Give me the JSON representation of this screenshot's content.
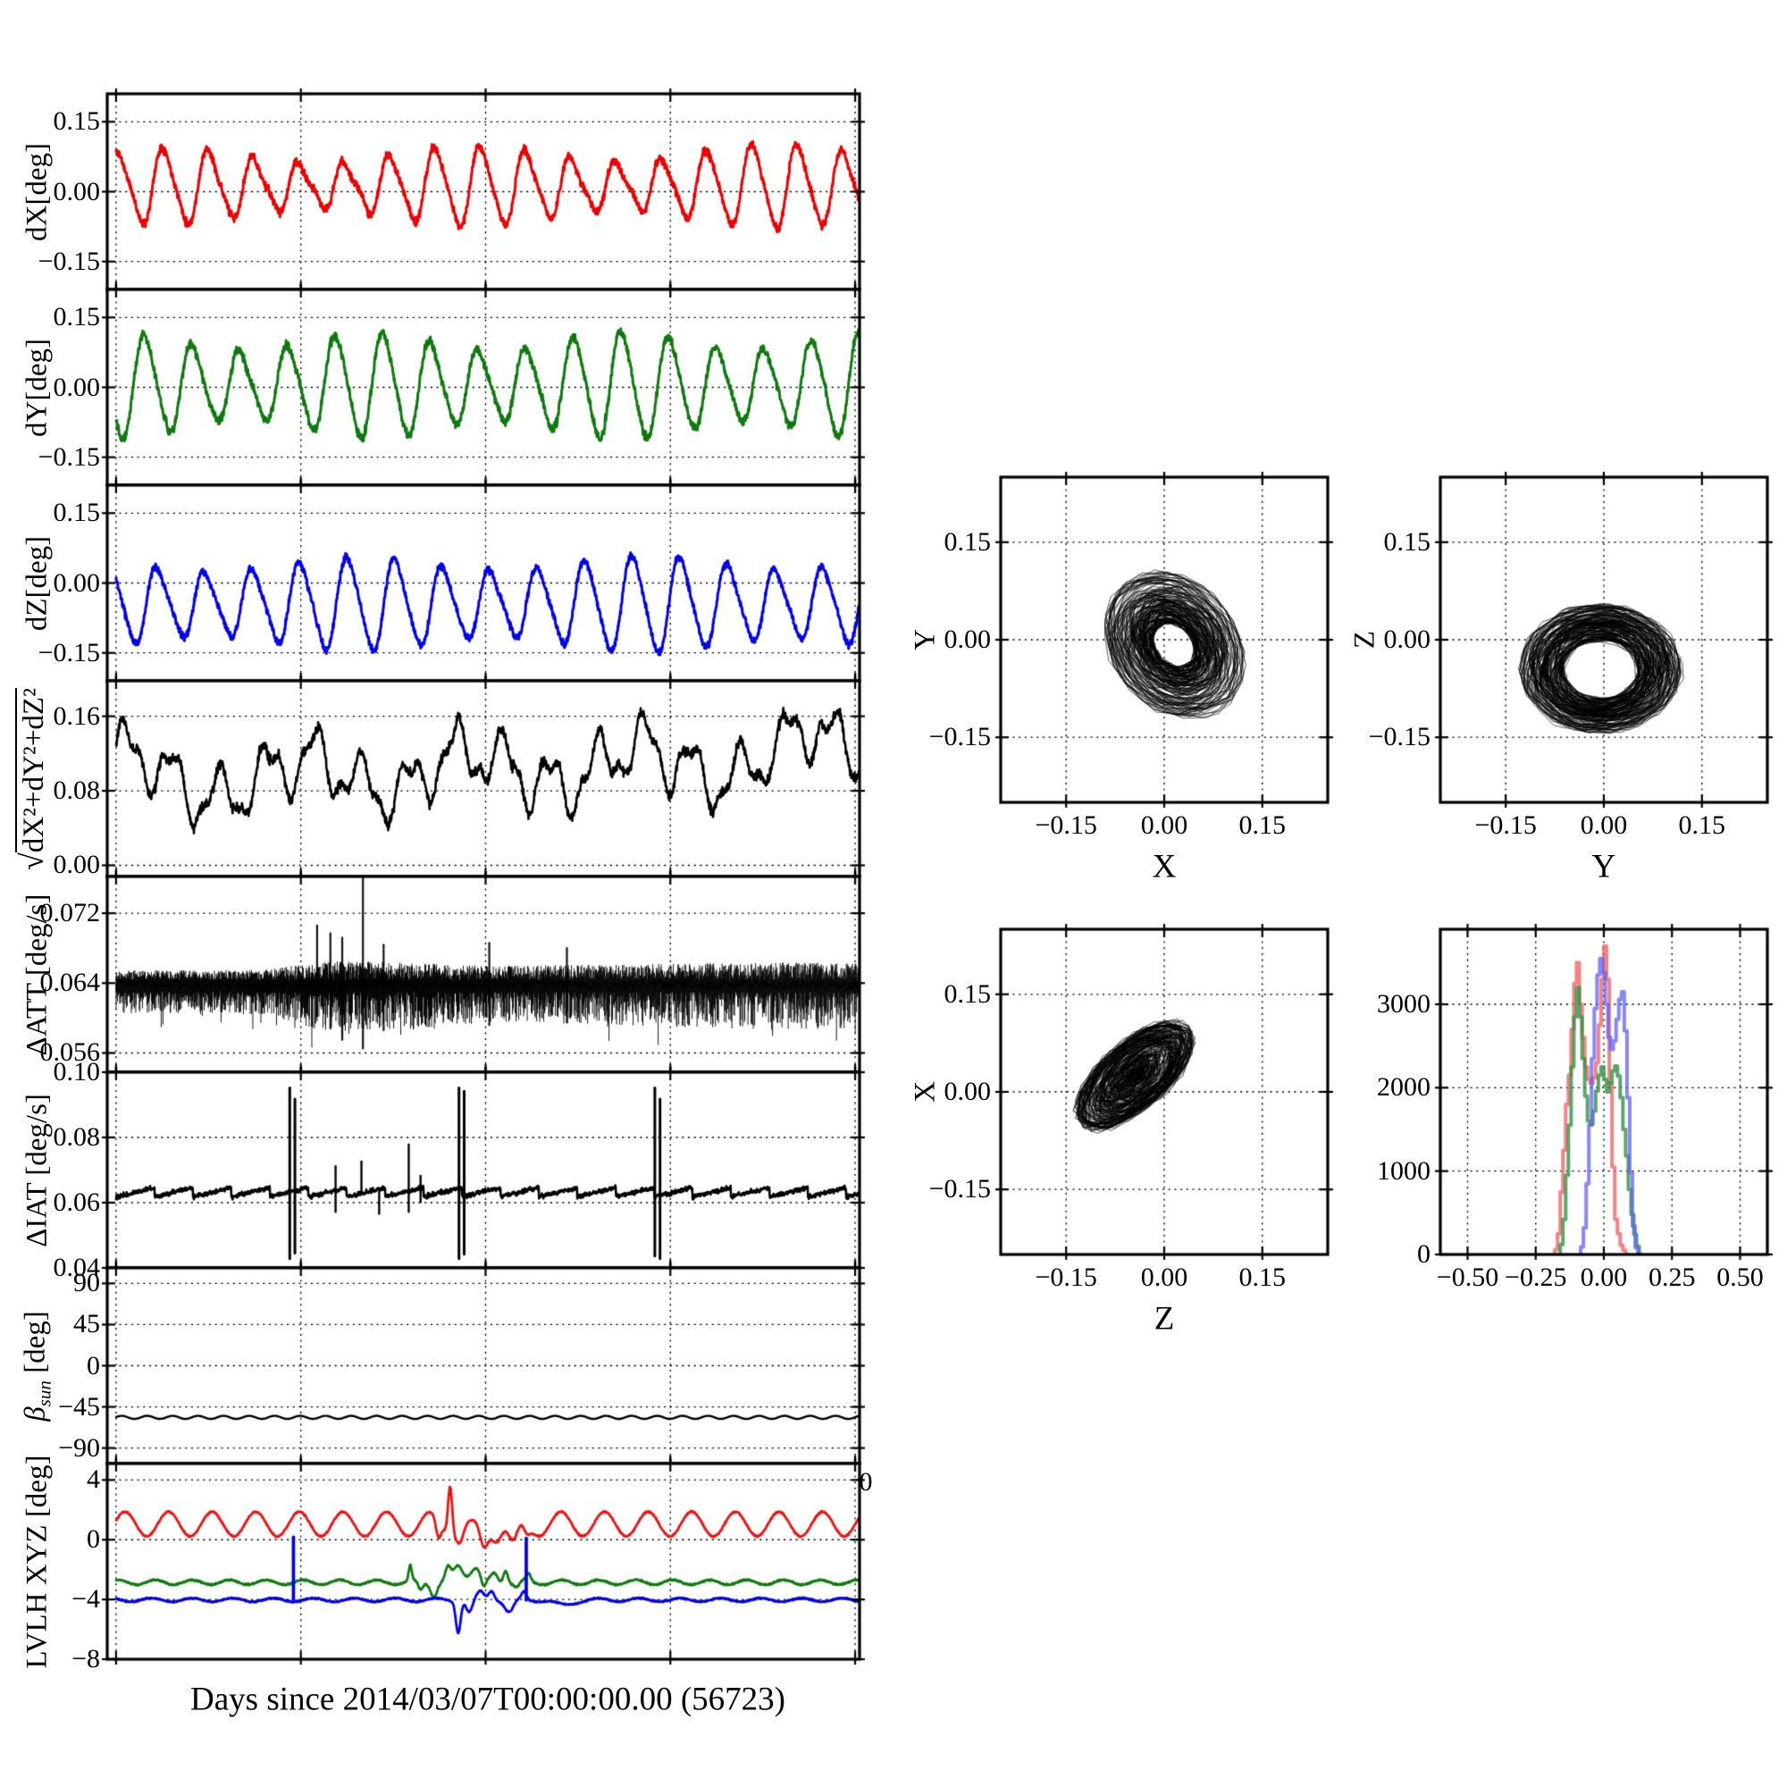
{
  "figure": {
    "xlabel": "Days since 2014/03/07T00:00:00.00 (56723)"
  },
  "chart_data": [
    {
      "id": "dx",
      "type": "line",
      "ylabel": "dX[deg]",
      "xlim": [
        -0.12,
        10.06
      ],
      "xticks": [
        0,
        2.5,
        5,
        7.5,
        10
      ],
      "ylim": [
        -0.21,
        0.21
      ],
      "yticks": [
        0.15,
        0,
        -0.15
      ],
      "yticklabels": [
        "0.15",
        "0.00",
        "−0.15"
      ],
      "series": [
        {
          "name": "dX",
          "color": "#ee0000",
          "lw": 3,
          "gen": "osc",
          "mean": 0.012,
          "amp": 0.06,
          "period": 0.613,
          "phase": 1.2,
          "amp_mod": {
            "a": 0.32,
            "p": 4.1,
            "ph": 0.5
          },
          "lin": 0.18,
          "harm2": 0.013,
          "noise": 0.009,
          "seed": 11
        }
      ],
      "desc": "Red oscillation ~16 cycles over 10 days; mean +0.01 deg, peaks 0.07 to 0.14 deg, troughs -0.02 to -0.09 deg"
    },
    {
      "id": "dy",
      "type": "line",
      "ylabel": "dY[deg]",
      "xlim": [
        -0.12,
        10.06
      ],
      "xticks": [
        0,
        2.5,
        5,
        7.5,
        10
      ],
      "ylim": [
        -0.21,
        0.21
      ],
      "yticks": [
        0.15,
        0,
        -0.15
      ],
      "yticklabels": [
        "0.15",
        "0.00",
        "−0.15"
      ],
      "series": [
        {
          "name": "dY",
          "color": "#0e7a0e",
          "lw": 3,
          "gen": "osc",
          "mean": 0.004,
          "amp": 0.09,
          "period": 0.645,
          "phase": 4.0,
          "amp_mod": {
            "a": 0.22,
            "p": 3.4,
            "ph": 1.5
          },
          "lin": 0.05,
          "harm2": 0.012,
          "noise": 0.01,
          "seed": 22
        }
      ],
      "desc": "Green oscillation ~15 cycles; mean 0, peaks to +0.13 deg, troughs to -0.13 deg"
    },
    {
      "id": "dz",
      "type": "line",
      "ylabel": "dZ[deg]",
      "xlim": [
        -0.12,
        10.06
      ],
      "xticks": [
        0,
        2.5,
        5,
        7.5,
        10
      ],
      "ylim": [
        -0.21,
        0.21
      ],
      "yticks": [
        0.15,
        0,
        -0.15
      ],
      "yticklabels": [
        "0.15",
        "0.00",
        "−0.15"
      ],
      "series": [
        {
          "name": "dZ",
          "color": "#0000ee",
          "lw": 3,
          "gen": "osc",
          "mean": -0.045,
          "amp": 0.08,
          "period": 0.643,
          "phase": 2.3,
          "amp_mod": {
            "a": 0.2,
            "p": 3.9,
            "ph": 2.6
          },
          "lin": 0.1,
          "harm2": 0.013,
          "noise": 0.008,
          "seed": 33
        }
      ],
      "desc": "Blue oscillation ~15 cycles; mean -0.045 deg, peaks ~+0.06, troughs ~-0.15 deg"
    },
    {
      "id": "mag",
      "type": "line",
      "ylabel_parts": {
        "sqrt": "√",
        "radicand": "dX²+dY²+dZ²"
      },
      "xlim": [
        -0.12,
        10.06
      ],
      "xticks": [
        0,
        2.5,
        5,
        7.5,
        10
      ],
      "ylim": [
        -0.012,
        0.198
      ],
      "yticks": [
        0.16,
        0.08,
        0
      ],
      "yticklabels": [
        "0.16",
        "0.08",
        "0.00"
      ],
      "series": [
        {
          "name": "magnitude",
          "color": "#000000",
          "lw": 2.6,
          "gen": "mag",
          "mean": 0.1,
          "comps": [
            {
              "a": 0.028,
              "p": 0.64,
              "ph": 0.4
            },
            {
              "a": 0.02,
              "p": 2.3,
              "ph": 1.1
            },
            {
              "a": 0.011,
              "p": 0.27,
              "ph": 0
            }
          ],
          "walk": 0.0015,
          "revert": 0.994,
          "noise": 0.0055,
          "trend": {
            "t0": 5,
            "dy": 0.013
          },
          "seed": 44
        }
      ],
      "desc": "Black total pointing error magnitude; fluctuates 0.03-0.18 deg, mean ~0.10 deg, slightly larger after day 5"
    },
    {
      "id": "datt",
      "type": "line",
      "ylabel": "ΔATT [deg/s]",
      "xlim": [
        -0.12,
        10.06
      ],
      "xticks": [
        0,
        2.5,
        5,
        7.5,
        10
      ],
      "ylim": [
        0.0538,
        0.0762
      ],
      "yticks": [
        0.072,
        0.064,
        0.056
      ],
      "yticklabels": [
        "0.072",
        "0.064",
        "0.056"
      ],
      "series": [
        {
          "name": "dATT rate",
          "color": "#000000",
          "lw": 1,
          "gen": "band",
          "base": 0.0638,
          "up": 0.0015,
          "down": 0.0032,
          "env": [
            0.75,
            0.75,
            0.8,
            1.55,
            1.3,
            1.1,
            1.15,
            1.2,
            1.3,
            1.35,
            1.3
          ],
          "spikes": [
            [
              3.34,
              0.0762,
              0.0565
            ],
            [
              2.72,
              0.0706,
              0.0602
            ],
            [
              2.9,
              0.0697,
              0.0588
            ],
            [
              3.06,
              0.0692,
              0.0575
            ],
            [
              3.62,
              0.0684,
              0.0586
            ],
            [
              5.05,
              0.0686,
              0.0592
            ],
            [
              6.1,
              0.068,
              0.0595
            ]
          ],
          "seed": 55
        }
      ],
      "desc": "Black rate-noise band centred at 0.064 deg/s, width ~±0.003; noisy burst near day 3 reaching 0.076 and 0.057"
    },
    {
      "id": "diat",
      "type": "line",
      "ylabel": "ΔIAT [deg/s]",
      "xlim": [
        -0.12,
        10.06
      ],
      "xticks": [
        0,
        2.5,
        5,
        7.5,
        10
      ],
      "ylim": [
        0.04,
        0.1
      ],
      "yticks": [
        0.1,
        0.08,
        0.06,
        0.04
      ],
      "yticklabels": [
        "0.10",
        "0.08",
        "0.06",
        "0.04"
      ],
      "series": [
        {
          "name": "dIAT rate",
          "color": "#000000",
          "lw": 2.6,
          "gen": "saw",
          "base": 0.0632,
          "amp": 0.0028,
          "period": 0.52,
          "noise": 0.0007,
          "events": [
            [
              2.35,
              0.0952,
              0.0428
            ],
            [
              2.42,
              0.0918,
              0.0445
            ],
            [
              4.64,
              0.0952,
              0.0428
            ],
            [
              4.71,
              0.0942,
              0.0442
            ],
            [
              7.29,
              0.0952,
              0.0436
            ],
            [
              7.36,
              0.0918,
              0.0428
            ]
          ],
          "minor": [
            [
              2.97,
              0.0712,
              0.0572
            ],
            [
              3.32,
              0.0726,
              0.0636
            ],
            [
              3.56,
              0.0642,
              0.0566
            ],
            [
              3.96,
              0.0778,
              0.0572
            ],
            [
              4.12,
              0.0682,
              0.0602
            ]
          ],
          "seed": 66
        }
      ],
      "desc": "Black sawtooth ~0.065±0.003 deg/s, period ~0.5 day; three spike events near days 2.4, 4.7, 7.3 spanning 0.043-0.095"
    },
    {
      "id": "beta",
      "type": "line",
      "ylabel_parts": {
        "beta": "β",
        "sub": "sun",
        "rest": " [deg]"
      },
      "xlim": [
        -0.12,
        10.06
      ],
      "xticks": [
        0,
        2.5,
        5,
        7.5,
        10
      ],
      "xedge_labels": [
        "0",
        "0"
      ],
      "ylim": [
        -107,
        107
      ],
      "yticks": [
        90,
        45,
        0,
        -45,
        -90
      ],
      "yticklabels": [
        "90",
        "45",
        "0",
        "−45",
        "−90"
      ],
      "series": [
        {
          "name": "beta sun",
          "color": "#000000",
          "lw": 2.4,
          "gen": "osc",
          "mean": -56.5,
          "amp": 1.7,
          "period": 0.345,
          "phase": 0.2,
          "noise": 0.12,
          "seed": 77
        }
      ],
      "desc": "Solar beta angle ~ -57 deg, nearly constant with small orbital ripple ±2 deg"
    },
    {
      "id": "lvlh",
      "type": "line",
      "ylabel": "LVLH XYZ [deg]",
      "xlim": [
        -0.12,
        10.06
      ],
      "xticks": [
        0,
        2.5,
        5,
        7.5,
        10
      ],
      "ylim": [
        -8,
        5.1
      ],
      "yticks": [
        4,
        0,
        -4,
        -8
      ],
      "yticklabels": [
        "4",
        "0",
        "−4",
        "−8"
      ],
      "series": [
        {
          "name": "LVLH X",
          "color": "#ee1111",
          "lw": 2.8,
          "gen": "osc",
          "mean": 1.05,
          "amp": 0.82,
          "period": 0.59,
          "phase": 0.3,
          "noise": 0.05,
          "seed": 88,
          "bumps": [
            [
              4.52,
              3.3,
              0.04
            ],
            [
              4.36,
              -1.2,
              0.05
            ],
            [
              4.66,
              -0.9,
              0.07
            ],
            [
              4.82,
              -0.5,
              0.09
            ],
            [
              4.97,
              -1.6,
              0.08
            ],
            [
              5.15,
              -0.4,
              0.07
            ],
            [
              5.38,
              -1.75,
              0.09
            ],
            [
              5.55,
              -0.8,
              0.07
            ]
          ]
        },
        {
          "name": "LVLH Y",
          "color": "#0e7a0e",
          "lw": 2.8,
          "gen": "osc",
          "mean": -2.85,
          "amp": 0.16,
          "period": 0.5,
          "phase": 1.2,
          "noise": 0.05,
          "seed": 99,
          "bumps": [
            [
              3.98,
              1.0,
              0.03
            ],
            [
              4.12,
              -0.55,
              0.045
            ],
            [
              4.3,
              -0.85,
              0.06
            ],
            [
              4.49,
              0.9,
              0.05
            ],
            [
              4.63,
              1.05,
              0.09
            ],
            [
              4.86,
              1.0,
              0.11
            ],
            [
              4.97,
              -0.7,
              0.045
            ],
            [
              5.12,
              0.55,
              0.06
            ],
            [
              5.27,
              0.9,
              0.045
            ],
            [
              5.42,
              -0.35,
              0.05
            ],
            [
              5.58,
              0.5,
              0.04
            ]
          ]
        },
        {
          "name": "LVLH Z",
          "color": "#0000ee",
          "lw": 2.8,
          "gen": "osc",
          "mean": -4.03,
          "amp": 0.12,
          "period": 0.55,
          "phase": 2.4,
          "noise": 0.045,
          "seed": 111,
          "bumps": [
            [
              4.63,
              -2.1,
              0.045
            ],
            [
              4.78,
              -0.85,
              0.06
            ],
            [
              4.93,
              0.5,
              0.07
            ],
            [
              5.08,
              0.65,
              0.055
            ],
            [
              5.32,
              -0.85,
              0.08
            ],
            [
              5.52,
              0.5,
              0.045
            ],
            [
              6.05,
              -0.35,
              0.18
            ]
          ],
          "vlines": [
            [
              2.4,
              0.18
            ],
            [
              5.55,
              0.1
            ]
          ]
        }
      ],
      "desc": "LVLH attitude: X(red)~+1 deg, Y(green)~-2.9 deg, Z(blue)~-4 deg; disturbance days 4-5.7 (red spike to +4.3, blue dip to -6.2); blue telemetry spikes to ~0 deg at days 2.4 and 5.6"
    },
    {
      "id": "scatter-yx",
      "type": "scatter",
      "xlabel": "X",
      "ylabel": "Y",
      "xlim": [
        -0.25,
        0.25
      ],
      "xticks": [
        -0.15,
        0,
        0.15
      ],
      "xticklabels": [
        "−0.15",
        "0.00",
        "0.15"
      ],
      "ylim": [
        -0.25,
        0.25
      ],
      "yticks": [
        0.15,
        0,
        -0.15
      ],
      "yticklabels": [
        "0.15",
        "0.00",
        "−0.15"
      ],
      "series": [
        {
          "name": "dY vs dX trajectory",
          "color": "rgba(0,0,0,0.82)",
          "lw": 0.8,
          "gen": "annulus",
          "n": 2600,
          "seed": 101,
          "cx": 0.015,
          "cy": -0.008,
          "rmin": 0.035,
          "rmax": 0.125,
          "sx": 0.78,
          "sy": 1.0,
          "rot": 38,
          "rwalk": 0.012,
          "jit": 0.003,
          "dth": [
            0.22,
            0.5
          ]
        }
      ],
      "desc": "Trajectory of (dX,dY): tilted annular cloud, radius 0.03-0.13 deg, centred near origin"
    },
    {
      "id": "scatter-zy",
      "type": "scatter",
      "xlabel": "Y",
      "ylabel": "Z",
      "xlim": [
        -0.25,
        0.25
      ],
      "xticks": [
        -0.15,
        0,
        0.15
      ],
      "xticklabels": [
        "−0.15",
        "0.00",
        "0.15"
      ],
      "ylim": [
        -0.25,
        0.25
      ],
      "yticks": [
        0.15,
        0,
        -0.15
      ],
      "yticklabels": [
        "0.15",
        "0.00",
        "−0.15"
      ],
      "series": [
        {
          "name": "dZ vs dY trajectory",
          "color": "rgba(0,0,0,0.82)",
          "lw": 0.8,
          "gen": "annulus",
          "n": 2600,
          "seed": 202,
          "cx": -0.005,
          "cy": -0.045,
          "rmin": 0.055,
          "rmax": 0.125,
          "sx": 1.0,
          "sy": 0.8,
          "rot": 0,
          "rwalk": 0.011,
          "jit": 0.004,
          "dth": [
            0.22,
            0.5
          ]
        }
      ],
      "desc": "Trajectory of (dY,dZ): ring-shaped cloud centred near (0,-0.05), radius ~0.05-0.13 deg"
    },
    {
      "id": "scatter-xz",
      "type": "scatter",
      "xlabel": "Z",
      "ylabel": "X",
      "xlim": [
        -0.25,
        0.25
      ],
      "xticks": [
        -0.15,
        0,
        0.15
      ],
      "xticklabels": [
        "−0.15",
        "0.00",
        "0.15"
      ],
      "ylim": [
        -0.25,
        0.25
      ],
      "yticks": [
        0.15,
        0,
        -0.15
      ],
      "yticklabels": [
        "0.15",
        "0.00",
        "−0.15"
      ],
      "series": [
        {
          "name": "dX vs dZ trajectory",
          "color": "rgba(0,0,0,0.82)",
          "lw": 0.8,
          "gen": "annulus",
          "n": 2600,
          "seed": 303,
          "cx": -0.045,
          "cy": 0.025,
          "rmin": 0.004,
          "rmax": 0.115,
          "sx": 1.0,
          "sy": 0.46,
          "rot": 42,
          "rwalk": 0.02,
          "jit": 0.004,
          "dth": [
            0.25,
            0.6
          ]
        }
      ],
      "desc": "Trajectory of (dZ,dX): filled diagonal ellipse from (-0.15,-0.08) to (+0.06,+0.13)"
    },
    {
      "id": "hist",
      "type": "histogram",
      "xlim": [
        -0.6,
        0.6
      ],
      "xticks": [
        -0.5,
        -0.25,
        0,
        0.25,
        0.5
      ],
      "xticklabels": [
        "−0.50",
        "−0.25",
        "0.00",
        "0.25",
        "0.50"
      ],
      "ylim": [
        0,
        3900
      ],
      "yticks": [
        3000,
        2000,
        1000,
        0
      ],
      "yticklabels": [
        "3000",
        "2000",
        "1000",
        "0"
      ],
      "series": [
        {
          "name": "dX histogram",
          "color": "rgba(242,100,100,0.8)",
          "lw": 4,
          "gen": "hist",
          "x0": -0.18,
          "bw": 0.01,
          "counts": [
            60,
            250,
            750,
            1250,
            1800,
            2150,
            2700,
            3250,
            3500,
            3000,
            2600,
            2250,
            2100,
            2050,
            2120,
            2300,
            2750,
            3300,
            3700,
            3300,
            2050,
            1050,
            420,
            250,
            110,
            50,
            0
          ]
        },
        {
          "name": "dY histogram",
          "color": "rgba(50,145,70,0.8)",
          "lw": 4,
          "gen": "hist",
          "x0": -0.16,
          "bw": 0.01,
          "counts": [
            120,
            420,
            950,
            1550,
            2250,
            2850,
            3200,
            2850,
            2350,
            1900,
            1600,
            1560,
            1720,
            1960,
            2150,
            2250,
            2100,
            1950,
            2060,
            2200,
            2260,
            2140,
            1880,
            1500,
            1180,
            780,
            480,
            240,
            100,
            0
          ]
        },
        {
          "name": "dZ histogram",
          "color": "rgba(95,95,250,0.75)",
          "lw": 4,
          "gen": "hist",
          "x0": -0.085,
          "bw": 0.01,
          "counts": [
            90,
            320,
            850,
            1550,
            2350,
            2950,
            3350,
            3550,
            3380,
            3000,
            2600,
            2460,
            2560,
            2820,
            3060,
            3150,
            2680,
            1880,
            980,
            340,
            80,
            0
          ]
        }
      ],
      "desc": "Step histograms of dX (red, bimodal peaks ~3500 at -0.10 and ~3700 at 0.00), dY (green, broad -0.15..0.13, peak ~3200 at -0.09), dZ (blue, peaks ~3550 at -0.01 and ~3150 at +0.07)"
    }
  ]
}
